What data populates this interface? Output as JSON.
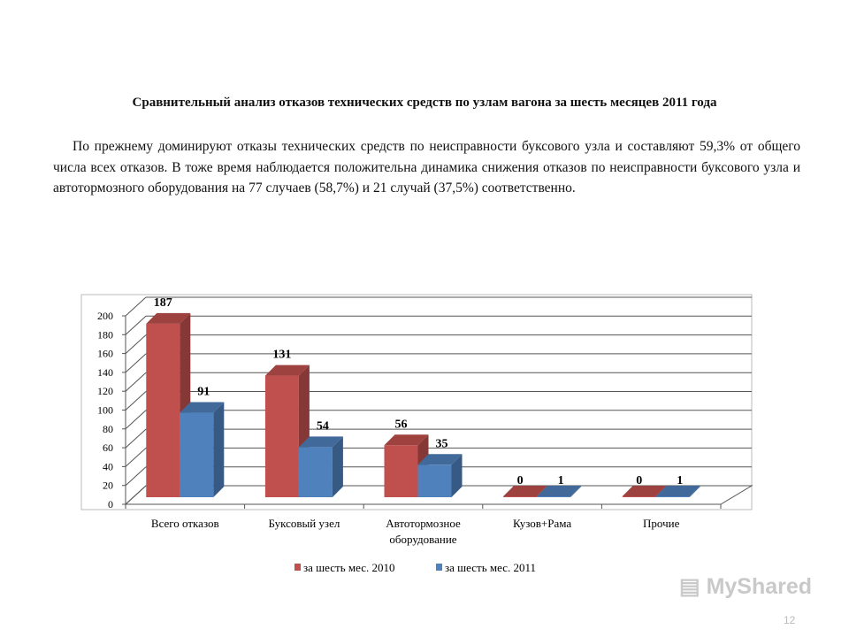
{
  "slide": {
    "title": "Сравнительный анализ отказов технических средств по узлам вагона за шесть месяцев 2011 года",
    "paragraph": "По прежнему доминируют отказы технических средств по неисправности буксового узла и составляют 59,3% от общего числа всех отказов. В тоже время наблюдается положительна динамика снижения отказов  по неисправности буксового узла и автотормозного оборудования на 77 случаев (58,7%) и 21 случай (37,5%) соответственно.",
    "page_number": "12",
    "watermark": "MyShared"
  },
  "chart_data": {
    "type": "bar",
    "style": "3d-clustered-column",
    "categories": [
      "Всего отказов",
      "Буксовый узел",
      "Автотормозное оборудование",
      "Кузов+Рама",
      "Прочие"
    ],
    "series": [
      {
        "name": "за шесть мес. 2010",
        "values": [
          187,
          131,
          56,
          0,
          0
        ],
        "labels": [
          "187",
          "131",
          "56",
          "0",
          "0"
        ],
        "color": "#c0504d"
      },
      {
        "name": "за шесть мес. 2011",
        "values": [
          91,
          54,
          35,
          1,
          1
        ],
        "labels": [
          "91",
          "54",
          "35",
          "1",
          "1"
        ],
        "color": "#4f81bd"
      }
    ],
    "yticks": [
      "0",
      "20",
      "40",
      "60",
      "80",
      "100",
      "120",
      "140",
      "160",
      "180",
      "200"
    ],
    "ylim": [
      0,
      200
    ],
    "grid": true,
    "legend": "bottom"
  }
}
